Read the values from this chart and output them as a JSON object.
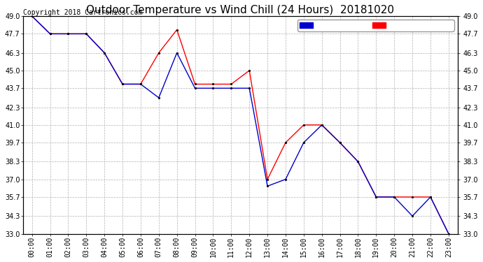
{
  "title": "Outdoor Temperature vs Wind Chill (24 Hours)  20181020",
  "copyright": "Copyright 2018 Cartronics.com",
  "xlim": [
    -0.5,
    23.5
  ],
  "ylim": [
    33.0,
    49.0
  ],
  "yticks": [
    33.0,
    34.3,
    35.7,
    37.0,
    38.3,
    39.7,
    41.0,
    42.3,
    43.7,
    45.0,
    46.3,
    47.7,
    49.0
  ],
  "xtick_labels": [
    "00:00",
    "01:00",
    "02:00",
    "03:00",
    "04:00",
    "05:00",
    "06:00",
    "07:00",
    "08:00",
    "09:00",
    "10:00",
    "11:00",
    "12:00",
    "13:00",
    "14:00",
    "15:00",
    "16:00",
    "17:00",
    "18:00",
    "19:00",
    "20:00",
    "21:00",
    "22:00",
    "23:00"
  ],
  "temperature": [
    49.0,
    47.7,
    47.7,
    47.7,
    46.3,
    44.0,
    44.0,
    46.3,
    48.0,
    44.0,
    44.0,
    44.0,
    45.0,
    37.0,
    39.7,
    41.0,
    41.0,
    39.7,
    38.3,
    35.7,
    35.7,
    35.7,
    35.7,
    33.0
  ],
  "wind_chill": [
    49.0,
    47.7,
    47.7,
    47.7,
    46.3,
    44.0,
    44.0,
    43.0,
    46.3,
    43.7,
    43.7,
    43.7,
    43.7,
    36.5,
    37.0,
    39.7,
    41.0,
    39.7,
    38.3,
    35.7,
    35.7,
    34.3,
    35.7,
    33.0
  ],
  "temp_color": "#ff0000",
  "wind_chill_color": "#0000cc",
  "legend_wind_chill_bg": "#0000cc",
  "legend_temp_bg": "#ff0000",
  "background_color": "#ffffff",
  "grid_color": "#b0b0b0",
  "title_fontsize": 11,
  "tick_fontsize": 7,
  "copyright_fontsize": 7,
  "legend_fontsize": 7.5
}
